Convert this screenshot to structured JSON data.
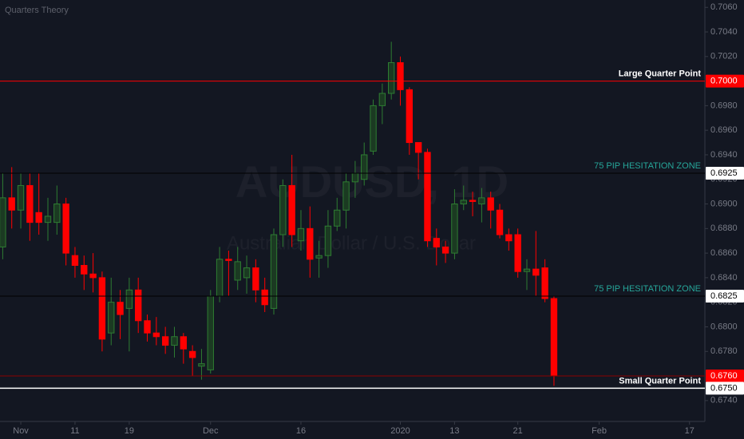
{
  "chart_data": {
    "type": "candlestick",
    "title": "Quarters Theory",
    "watermark": "AUDUSD, 1D",
    "watermark_subtitle": "Australian Dollar / U.S. Dollar",
    "categories": [
      null,
      null,
      null,
      null,
      null,
      null,
      null,
      null,
      null,
      null,
      null,
      null,
      null,
      null,
      null,
      null,
      null,
      null,
      null,
      null,
      null,
      null,
      null,
      null,
      null,
      null,
      null,
      null,
      null,
      null,
      null,
      null,
      null,
      null,
      null,
      null,
      null,
      null,
      null,
      null,
      null,
      null,
      null,
      null,
      null,
      null,
      null,
      null,
      null,
      null,
      null,
      null,
      null,
      null,
      null,
      null,
      null,
      null,
      null,
      null,
      null,
      null
    ],
    "series": [
      {
        "up_color": "#2e7d32",
        "down_color": "#ff0000",
        "open": [
          0.6865,
          0.6905,
          0.6895,
          0.6915,
          0.6893,
          0.6885,
          0.6885,
          0.69,
          0.6858,
          0.685,
          0.6843,
          0.684,
          0.6795,
          0.682,
          0.6815,
          0.683,
          0.6805,
          0.6795,
          0.6792,
          0.6785,
          0.6792,
          0.678,
          0.6768,
          0.6765,
          0.6825,
          0.6855,
          0.6838,
          0.684,
          0.6848,
          0.683,
          0.6815,
          0.6875,
          0.6915,
          0.687,
          0.688,
          0.6856,
          0.6858,
          0.6882,
          0.6895,
          0.6918,
          0.692,
          0.6943,
          0.698,
          0.699,
          0.7015,
          0.6993,
          0.695,
          0.6942,
          0.6872,
          0.6865,
          0.686,
          0.69,
          0.6903,
          0.69,
          0.6905,
          0.6895,
          0.6875,
          0.6875,
          0.6845,
          0.6847,
          0.6848,
          0.6823
        ],
        "high": [
          0.6925,
          0.693,
          0.6925,
          0.6925,
          0.6925,
          0.6905,
          0.6915,
          0.6905,
          0.6865,
          0.6858,
          0.686,
          0.6845,
          0.684,
          0.683,
          0.684,
          0.684,
          0.681,
          0.6808,
          0.68,
          0.68,
          0.6795,
          0.6785,
          0.6782,
          0.683,
          0.6865,
          0.6862,
          0.6865,
          0.6858,
          0.6855,
          0.684,
          0.688,
          0.692,
          0.694,
          0.6895,
          0.6898,
          0.687,
          0.6895,
          0.6905,
          0.6925,
          0.6935,
          0.695,
          0.6985,
          0.6998,
          0.7032,
          0.702,
          0.6995,
          0.695,
          0.6945,
          0.688,
          0.687,
          0.6912,
          0.6915,
          0.691,
          0.6913,
          0.691,
          0.69,
          0.688,
          0.688,
          0.6855,
          0.6878,
          0.6855,
          0.6825
        ],
        "low": [
          0.6855,
          0.688,
          0.688,
          0.687,
          0.6875,
          0.687,
          0.6875,
          0.685,
          0.684,
          0.683,
          0.6828,
          0.678,
          0.6785,
          0.679,
          0.678,
          0.6795,
          0.6788,
          0.6785,
          0.6778,
          0.6775,
          0.677,
          0.676,
          0.6757,
          0.6762,
          0.682,
          0.6825,
          0.683,
          0.6827,
          0.682,
          0.6812,
          0.681,
          0.6865,
          0.6865,
          0.6862,
          0.684,
          0.684,
          0.6848,
          0.6878,
          0.688,
          0.6905,
          0.6915,
          0.694,
          0.6965,
          0.6985,
          0.698,
          0.694,
          0.692,
          0.6865,
          0.685,
          0.6852,
          0.6855,
          0.6895,
          0.689,
          0.6885,
          0.688,
          0.6872,
          0.6862,
          0.684,
          0.683,
          0.6825,
          0.682,
          0.6752
        ],
        "close": [
          0.6905,
          0.6895,
          0.6915,
          0.6885,
          0.6885,
          0.689,
          0.69,
          0.686,
          0.685,
          0.6843,
          0.684,
          0.679,
          0.682,
          0.681,
          0.683,
          0.6805,
          0.6795,
          0.6792,
          0.6785,
          0.6792,
          0.6782,
          0.6775,
          0.677,
          0.6825,
          0.6855,
          0.6854,
          0.6853,
          0.6848,
          0.683,
          0.6818,
          0.6875,
          0.6915,
          0.6875,
          0.688,
          0.6855,
          0.6858,
          0.6882,
          0.6895,
          0.6918,
          0.6925,
          0.694,
          0.698,
          0.699,
          0.7015,
          0.6993,
          0.695,
          0.6942,
          0.687,
          0.6865,
          0.686,
          0.69,
          0.6903,
          0.6902,
          0.6905,
          0.6895,
          0.6875,
          0.687,
          0.6845,
          0.6847,
          0.6842,
          0.6823,
          0.676
        ]
      }
    ],
    "xlim": [
      -0.3,
      77.7
    ],
    "xticks": [
      {
        "value": 2,
        "label": "Nov"
      },
      {
        "value": 8,
        "label": "11"
      },
      {
        "value": 14,
        "label": "19"
      },
      {
        "value": 23,
        "label": "Dec"
      },
      {
        "value": 33,
        "label": "16"
      },
      {
        "value": 44,
        "label": "2020"
      },
      {
        "value": 50,
        "label": "13"
      },
      {
        "value": 57,
        "label": "21"
      },
      {
        "value": 66,
        "label": "Feb"
      },
      {
        "value": 76,
        "label": "17"
      }
    ],
    "ylim": [
      0.6723,
      0.7066
    ],
    "yticks": [
      {
        "value": 0.674,
        "label": "0.6740"
      },
      {
        "value": 0.678,
        "label": "0.6780"
      },
      {
        "value": 0.68,
        "label": "0.6800"
      },
      {
        "value": 0.682,
        "label": "0.6820"
      },
      {
        "value": 0.684,
        "label": "0.6840"
      },
      {
        "value": 0.686,
        "label": "0.6860"
      },
      {
        "value": 0.688,
        "label": "0.6880"
      },
      {
        "value": 0.69,
        "label": "0.6900"
      },
      {
        "value": 0.692,
        "label": "0.6920"
      },
      {
        "value": 0.694,
        "label": "0.6940"
      },
      {
        "value": 0.696,
        "label": "0.6960"
      },
      {
        "value": 0.698,
        "label": "0.6980"
      },
      {
        "value": 0.702,
        "label": "0.7020"
      },
      {
        "value": 0.704,
        "label": "0.7040"
      },
      {
        "value": 0.706,
        "label": "0.7060"
      }
    ],
    "levels": [
      {
        "value": 0.7,
        "label": "0.7000",
        "color": "#ff0000",
        "tag_color": "#ff0000",
        "text": "Large Quarter Point",
        "text_color": "#ffffff"
      },
      {
        "value": 0.6925,
        "label": "0.6925",
        "color": "#000000",
        "tag_color": "#ffffff",
        "text": "75 PIP HESITATION ZONE",
        "text_color": "#26a69a"
      },
      {
        "value": 0.6825,
        "label": "0.6825",
        "color": "#000000",
        "tag_color": "#ffffff",
        "text": "75 PIP HESITATION ZONE",
        "text_color": "#26a69a"
      },
      {
        "value": 0.676,
        "label": "0.6760",
        "color": "#8b0000",
        "tag_color": "#ff0000"
      },
      {
        "value": 0.675,
        "label": "0.6750",
        "color": "#ffffff",
        "tag_color": "#ffffff",
        "text": "Small Quarter Point",
        "text_color": "#ffffff"
      }
    ]
  }
}
